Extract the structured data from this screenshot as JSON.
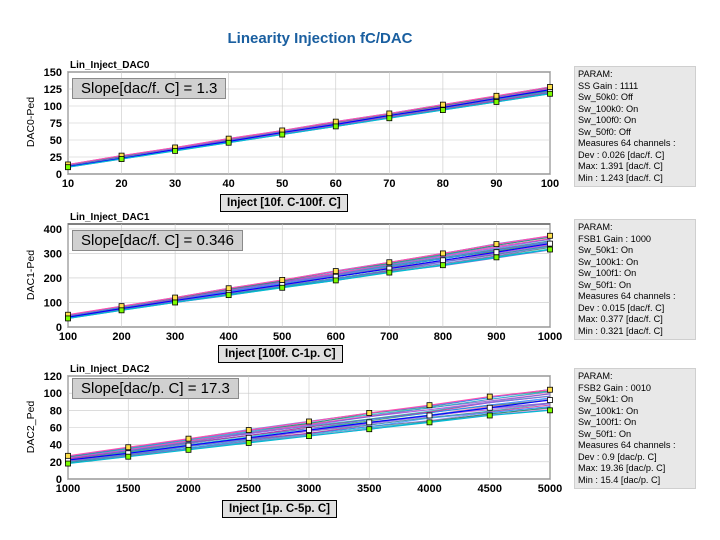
{
  "page_title": "Linearity Injection fC/DAC",
  "colors": {
    "title": "#1a5fa0",
    "ideal": "#0000ff",
    "series_palette": [
      "#6a5acd",
      "#ff4fb0",
      "#00bcd4",
      "#2e8b57",
      "#9370db",
      "#1e90ff",
      "#d02090",
      "#20b2aa",
      "#7b68ee",
      "#ba55d3"
    ]
  },
  "chart_data": [
    {
      "type": "line",
      "plot_label": "Lin_Inject_DAC0",
      "ylabel": "DAC0-Ped",
      "xlabel": "",
      "x_ticks": [
        10,
        20,
        30,
        40,
        50,
        60,
        70,
        80,
        90,
        100
      ],
      "y_ticks": [
        0,
        25,
        50,
        75,
        100,
        125,
        150
      ],
      "xlim": [
        10,
        100
      ],
      "ylim": [
        0,
        150
      ],
      "grid": true,
      "x": [
        10,
        20,
        30,
        40,
        50,
        60,
        70,
        80,
        90,
        100
      ],
      "series": [
        {
          "values": [
            11,
            23,
            36,
            48,
            61,
            73,
            86,
            98,
            111,
            124
          ]
        },
        {
          "values": [
            14,
            27,
            39,
            52,
            64,
            77,
            89,
            102,
            115,
            128
          ]
        },
        {
          "values": [
            10,
            22,
            34,
            46,
            58,
            70,
            82,
            94,
            106,
            118
          ]
        }
      ],
      "slope_text": "Slope[dac/f. C] = 1.3",
      "params": [
        "PARAM:",
        "SS Gain : 1111",
        "Sw_50k0: Off",
        "Sw_100k0: On",
        "Sw_100f0: On",
        "Sw_50f0: Off",
        "Measures 64 channels :",
        "Dev : 0.026 [dac/f. C]",
        "Max: 1.391 [dac/f. C]",
        "Min : 1.243 [dac/f. C]"
      ],
      "inject_label": "Inject [10f. C-100f. C]"
    },
    {
      "type": "line",
      "plot_label": "Lin_Inject_DAC1",
      "ylabel": "DAC1-Ped",
      "xlabel": "",
      "x_ticks": [
        100,
        200,
        300,
        400,
        500,
        600,
        700,
        800,
        900,
        1000
      ],
      "y_ticks": [
        0,
        100,
        200,
        300,
        400
      ],
      "xlim": [
        100,
        1000
      ],
      "ylim": [
        0,
        420
      ],
      "grid": true,
      "x": [
        100,
        200,
        300,
        400,
        500,
        600,
        700,
        800,
        900,
        1000
      ],
      "series": [
        {
          "values": [
            40,
            75,
            108,
            140,
            172,
            205,
            238,
            272,
            305,
            340
          ]
        },
        {
          "values": [
            50,
            85,
            120,
            158,
            192,
            228,
            264,
            300,
            338,
            372
          ]
        },
        {
          "values": [
            35,
            68,
            100,
            130,
            160,
            190,
            222,
            252,
            284,
            316
          ]
        }
      ],
      "slope_text": "Slope[dac/f. C] = 0.346",
      "params": [
        "PARAM:",
        "FSB1 Gain : 1000",
        "Sw_50k1: On",
        "Sw_100k1: On",
        "Sw_100f1: On",
        "Sw_50f1: On",
        "Measures 64 channels :",
        "Dev : 0.015 [dac/f. C]",
        "Max: 0.377 [dac/f. C]",
        "Min : 0.321 [dac/f. C]"
      ],
      "inject_label": "Inject [100f. C-1p. C]"
    },
    {
      "type": "line",
      "plot_label": "Lin_Inject_DAC2",
      "ylabel": "DAC2_Ped",
      "xlabel": "",
      "x_ticks": [
        1000,
        1500,
        2000,
        2500,
        3000,
        3500,
        4000,
        4500,
        5000
      ],
      "y_ticks": [
        0,
        20,
        40,
        60,
        80,
        100,
        120
      ],
      "xlim": [
        1000,
        5000
      ],
      "ylim": [
        0,
        120
      ],
      "grid": true,
      "x": [
        1000,
        1500,
        2000,
        2500,
        3000,
        3500,
        4000,
        4500,
        5000
      ],
      "series": [
        {
          "values": [
            22,
            30,
            39,
            48,
            57,
            66,
            74,
            83,
            92
          ]
        },
        {
          "values": [
            27,
            37,
            47,
            57,
            67,
            77,
            86,
            96,
            104
          ]
        },
        {
          "values": [
            18,
            26,
            34,
            42,
            50,
            58,
            66,
            74,
            80
          ]
        }
      ],
      "slope_text": "Slope[dac/p. C] = 17.3",
      "params": [
        "PARAM:",
        "FSB2 Gain : 0010",
        "Sw_50k1: On",
        "Sw_100k1: On",
        "Sw_100f1: On",
        "Sw_50f1: On",
        "Measures 64 channels :",
        "Dev : 0.9 [dac/p. C]",
        "Max: 19.36 [dac/p. C]",
        "Min : 15.4 [dac/p. C]"
      ],
      "inject_label": "Inject [1p. C-5p. C]"
    }
  ]
}
